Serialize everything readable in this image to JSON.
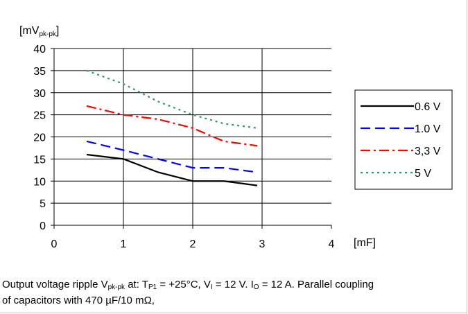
{
  "chart_data": {
    "type": "line",
    "title": "",
    "ylabel": {
      "main": "[mV",
      "sub": "pk-pk",
      "end": "]"
    },
    "xlabel": "[mF]",
    "xlim": [
      0,
      4
    ],
    "ylim": [
      0,
      40
    ],
    "xticks": [
      "0",
      "1",
      "2",
      "3",
      "4"
    ],
    "yticks": [
      "0",
      "5",
      "10",
      "15",
      "20",
      "25",
      "30",
      "35",
      "40"
    ],
    "grid": true,
    "legend_position": "right",
    "series": [
      {
        "name": "0.6 V",
        "color": "#000000",
        "style": "solid",
        "x": [
          0.47,
          1.0,
          1.5,
          2.0,
          2.45,
          2.93
        ],
        "y": [
          16,
          15,
          12,
          10,
          10,
          9
        ]
      },
      {
        "name": "1.0 V",
        "color": "#0000ff",
        "style": "dash",
        "x": [
          0.47,
          1.0,
          1.5,
          2.0,
          2.45,
          2.93
        ],
        "y": [
          19,
          17,
          15,
          13,
          13,
          12
        ]
      },
      {
        "name": "3,3 V",
        "color": "#ff0000",
        "style": "dashdot",
        "x": [
          0.47,
          1.0,
          1.5,
          2.0,
          2.45,
          2.93
        ],
        "y": [
          27,
          25,
          24,
          22,
          19,
          18
        ]
      },
      {
        "name": "5 V",
        "color": "#339966",
        "style": "dot",
        "x": [
          0.47,
          1.0,
          1.5,
          2.0,
          2.45,
          2.93
        ],
        "y": [
          35,
          32,
          28,
          25,
          23,
          22
        ]
      }
    ]
  },
  "caption": {
    "p1": "Output voltage ripple V",
    "s1": "pk-pk",
    "p2": " at: T",
    "s2": "P1",
    "p3": " = +25°C, V",
    "s3": "I",
    "p4": " = 12 V. I",
    "s4": "O",
    "p5": " = 12 A. Parallel coupling",
    "line2": "of capacitors with 470 µF/10 mΩ,"
  }
}
